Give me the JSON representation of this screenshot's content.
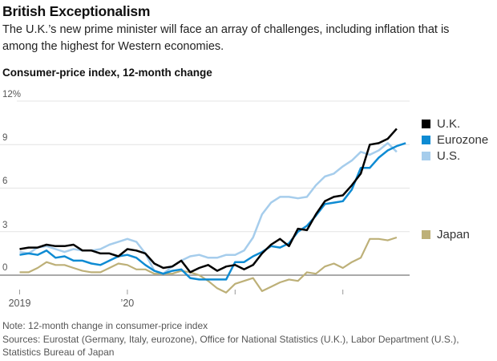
{
  "header": {
    "title": "British Exceptionalism",
    "subtitle": "The U.K.’s new prime minister will face an array of challenges, including inflation that is among the highest for Western economies.",
    "chart_heading": "Consumer-price index, 12-month change"
  },
  "chart_data": {
    "type": "line",
    "title": "Consumer-price index, 12-month change",
    "x_start": "2019-01",
    "x_frequency": "monthly",
    "ylim": [
      -1.5,
      12
    ],
    "grid": true,
    "zero_line": true,
    "legend_position": "right",
    "y_ticks": {
      "values": [
        12,
        9,
        6,
        3,
        0
      ],
      "labels": [
        "12%",
        "9",
        "6",
        "3",
        "0"
      ]
    },
    "x_ticks": {
      "month_positions": [
        0,
        12,
        24,
        36
      ],
      "labels": [
        "2019",
        "’20",
        "",
        ""
      ]
    },
    "series": [
      {
        "name": "U.K.",
        "color": "#000000",
        "values": [
          1.8,
          1.9,
          1.9,
          2.1,
          2.0,
          2.0,
          2.1,
          1.7,
          1.7,
          1.5,
          1.5,
          1.3,
          1.8,
          1.7,
          1.5,
          0.8,
          0.5,
          0.6,
          1.0,
          0.2,
          0.5,
          0.7,
          0.3,
          0.6,
          0.7,
          0.4,
          0.7,
          1.5,
          2.1,
          2.5,
          2.0,
          3.2,
          3.1,
          4.2,
          5.1,
          5.4,
          5.5,
          6.2,
          7.0,
          9.0,
          9.1,
          9.4,
          10.1
        ]
      },
      {
        "name": "Eurozone",
        "color": "#0e8bd3",
        "values": [
          1.4,
          1.5,
          1.4,
          1.7,
          1.2,
          1.3,
          1.0,
          1.0,
          0.8,
          0.7,
          1.0,
          1.3,
          1.4,
          1.2,
          0.7,
          0.3,
          0.1,
          0.3,
          0.4,
          -0.2,
          -0.3,
          -0.3,
          -0.3,
          -0.3,
          0.9,
          0.9,
          1.3,
          1.6,
          2.0,
          1.9,
          2.2,
          3.0,
          3.4,
          4.1,
          4.9,
          5.0,
          5.1,
          5.9,
          7.4,
          7.4,
          8.1,
          8.6,
          8.9,
          9.1
        ]
      },
      {
        "name": "U.S.",
        "color": "#a6cdec",
        "values": [
          1.6,
          1.5,
          1.9,
          2.0,
          1.8,
          1.6,
          1.8,
          1.7,
          1.7,
          1.8,
          2.1,
          2.3,
          2.5,
          2.3,
          1.5,
          0.3,
          0.1,
          0.6,
          1.0,
          1.3,
          1.4,
          1.2,
          1.2,
          1.4,
          1.4,
          1.7,
          2.6,
          4.2,
          5.0,
          5.4,
          5.4,
          5.3,
          5.4,
          6.2,
          6.8,
          7.0,
          7.5,
          7.9,
          8.5,
          8.3,
          8.6,
          9.1,
          8.5
        ]
      },
      {
        "name": "Japan",
        "color": "#bdb078",
        "values": [
          0.2,
          0.2,
          0.5,
          0.9,
          0.7,
          0.7,
          0.5,
          0.3,
          0.2,
          0.2,
          0.5,
          0.8,
          0.7,
          0.4,
          0.4,
          0.1,
          0.1,
          0.1,
          0.3,
          0.2,
          0.0,
          -0.4,
          -0.9,
          -1.2,
          -0.6,
          -0.4,
          -0.2,
          -1.1,
          -0.8,
          -0.5,
          -0.3,
          -0.4,
          0.2,
          0.1,
          0.6,
          0.8,
          0.5,
          0.9,
          1.2,
          2.5,
          2.5,
          2.4,
          2.6
        ]
      }
    ]
  },
  "footer": {
    "note": "Note: 12-month change in consumer-price index",
    "sources": "Sources: Eurostat (Germany, Italy, eurozone), Office for National Statistics (U.K.), Labor Department (U.S.), Statistics Bureau of Japan"
  }
}
